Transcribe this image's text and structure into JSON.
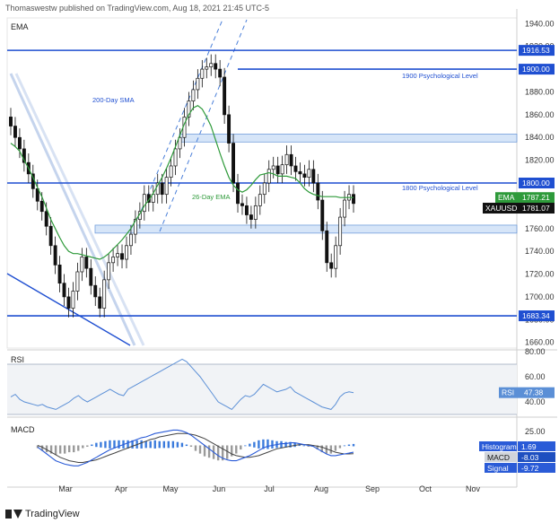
{
  "header": {
    "publisher": "Thomaswestw published on TradingView.com, Aug 18, 2021 21:45 UTC-5"
  },
  "footer": {
    "brand": "TradingView"
  },
  "colors": {
    "up": "#111111",
    "down": "#111111",
    "ema": "#2e9a3a",
    "level": "#1f4fd1",
    "zone_fill": "#cfe1f7",
    "zone_stroke": "#5d8fd6",
    "rsi": "#5b8fd6",
    "macd": "#2a5bd7",
    "signal": "#444444",
    "hist_pos": "#3b7bdc",
    "hist_neg": "#9a9a9a",
    "axis_text": "#333333"
  },
  "chart_data": [
    {
      "type": "candlestick",
      "title": "EMA",
      "xlabel": "",
      "ylabel": "",
      "ylim": [
        1655,
        1945
      ],
      "y_ticks": [
        1660,
        1680,
        1700,
        1720,
        1740,
        1760,
        1780,
        1800,
        1820,
        1840,
        1860,
        1880,
        1900,
        1920,
        1940
      ],
      "x_ticks": [
        "Mar",
        "Apr",
        "May",
        "Jun",
        "Jul",
        "Aug",
        "Sep",
        "Oct",
        "Nov"
      ],
      "series": [
        {
          "name": "XAUUSD",
          "last": 1781.07,
          "close": [
            1850,
            1840,
            1830,
            1818,
            1808,
            1795,
            1784,
            1775,
            1762,
            1745,
            1728,
            1712,
            1700,
            1690,
            1705,
            1722,
            1735,
            1725,
            1710,
            1700,
            1690,
            1715,
            1730,
            1735,
            1738,
            1733,
            1745,
            1755,
            1768,
            1775,
            1790,
            1783,
            1790,
            1800,
            1790,
            1805,
            1815,
            1830,
            1840,
            1858,
            1872,
            1882,
            1892,
            1900,
            1902,
            1905,
            1900,
            1893,
            1860,
            1835,
            1800,
            1782,
            1780,
            1772,
            1768,
            1780,
            1790,
            1800,
            1812,
            1815,
            1808,
            1816,
            1825,
            1815,
            1810,
            1808,
            1805,
            1812,
            1800,
            1785,
            1758,
            1730,
            1725,
            1745,
            1770,
            1785,
            1790,
            1782
          ]
        },
        {
          "name": "EMA",
          "last": 1787.21,
          "values": [
            1835,
            1832,
            1828,
            1820,
            1813,
            1805,
            1796,
            1788,
            1778,
            1768,
            1760,
            1752,
            1745,
            1740,
            1738,
            1738,
            1737,
            1736,
            1735,
            1734,
            1733,
            1735,
            1738,
            1742,
            1746,
            1750,
            1755,
            1760,
            1767,
            1773,
            1780,
            1785,
            1791,
            1798,
            1805,
            1813,
            1822,
            1832,
            1842,
            1852,
            1860,
            1866,
            1868,
            1865,
            1858,
            1850,
            1838,
            1826,
            1815,
            1805,
            1798,
            1794,
            1792,
            1794,
            1798,
            1803,
            1807,
            1808,
            1809,
            1808,
            1806,
            1806,
            1806,
            1805,
            1804,
            1800,
            1795,
            1792,
            1790,
            1789,
            1788,
            1788,
            1788,
            1788,
            1787.21,
            1787.21,
            1787.21,
            1787.21
          ]
        }
      ],
      "horizontal_levels": [
        {
          "value": 1916.53,
          "label": ""
        },
        {
          "value": 1900.0,
          "label": "1900 Psychological Level"
        },
        {
          "value": 1800.0,
          "label": "1800 Psychological Level"
        },
        {
          "value": 1683.34,
          "label": ""
        }
      ],
      "zones": [
        {
          "from": 1836,
          "to": 1843
        },
        {
          "from": 1756,
          "to": 1763
        }
      ],
      "annotations": [
        {
          "text": "200-Day SMA"
        },
        {
          "text": "26-Day EMA"
        }
      ],
      "price_labels": [
        {
          "text": "1916.53"
        },
        {
          "text": "1900.00"
        },
        {
          "text": "1800.00"
        },
        {
          "text": "1683.34"
        },
        {
          "text": "EMA",
          "value": "1787.21"
        },
        {
          "text": "XAUUSD",
          "value": "1781.07"
        }
      ]
    },
    {
      "type": "line",
      "title": "RSI",
      "ylim": [
        30,
        80
      ],
      "y_ticks": [
        40,
        60,
        80
      ],
      "band": [
        30,
        70
      ],
      "series": [
        {
          "name": "RSI",
          "last": 47.38,
          "values": [
            44,
            46,
            42,
            40,
            39,
            38,
            37,
            38,
            36,
            35,
            34,
            36,
            38,
            40,
            43,
            45,
            42,
            40,
            42,
            44,
            46,
            48,
            50,
            48,
            46,
            45,
            50,
            52,
            54,
            56,
            58,
            60,
            62,
            64,
            66,
            68,
            70,
            72,
            74,
            72,
            68,
            64,
            60,
            55,
            50,
            45,
            40,
            38,
            36,
            34,
            38,
            42,
            45,
            44,
            46,
            50,
            54,
            52,
            50,
            48,
            49,
            50,
            52,
            48,
            46,
            44,
            42,
            40,
            38,
            36,
            35,
            34,
            38,
            44,
            47,
            48,
            47.38
          ]
        }
      ],
      "value_label": {
        "text": "RSI",
        "value": "47.38"
      }
    },
    {
      "type": "line",
      "title": "MACD",
      "y_ticks": [
        25.0,
        0.0
      ],
      "tick_labels": [
        "25.00"
      ],
      "series": [
        {
          "name": "MACD",
          "last": -8.03,
          "values": [
            -2,
            -6,
            -10,
            -14,
            -18,
            -20,
            -22,
            -23,
            -24,
            -24,
            -22,
            -20,
            -17,
            -14,
            -11,
            -8,
            -5,
            -3,
            -1,
            1,
            3,
            5,
            7,
            9,
            10,
            12,
            14,
            15,
            16,
            17,
            18,
            18,
            17,
            15,
            12,
            8,
            4,
            0,
            -4,
            -8,
            -12,
            -15,
            -17,
            -18,
            -18,
            -16,
            -14,
            -12,
            -9,
            -6,
            -3,
            -1,
            0,
            1,
            2,
            2,
            3,
            3,
            2,
            1,
            0,
            -1,
            -4,
            -7,
            -10,
            -12,
            -12,
            -11,
            -10,
            -9,
            -8.03
          ]
        },
        {
          "name": "Signal",
          "last": -9.72,
          "values": [
            0,
            -2,
            -5,
            -8,
            -11,
            -14,
            -16,
            -18,
            -19,
            -20,
            -20,
            -19,
            -18,
            -17,
            -15,
            -13,
            -11,
            -9,
            -7,
            -5,
            -3,
            -1,
            1,
            3,
            5,
            7,
            8,
            10,
            11,
            12,
            13,
            14,
            14,
            14,
            13,
            12,
            10,
            8,
            5,
            2,
            -1,
            -4,
            -7,
            -10,
            -12,
            -13,
            -14,
            -14,
            -13,
            -12,
            -10,
            -8,
            -6,
            -4,
            -3,
            -2,
            -1,
            0,
            1,
            1,
            1,
            0,
            -1,
            -2,
            -4,
            -6,
            -8,
            -9,
            -10,
            -10,
            -9.72
          ]
        },
        {
          "name": "Histogram",
          "last": 1.69
        }
      ],
      "value_labels": [
        {
          "text": "Histogram",
          "value": "1.69"
        },
        {
          "text": "MACD",
          "value": "-8.03"
        },
        {
          "text": "Signal",
          "value": "-9.72"
        }
      ]
    }
  ]
}
